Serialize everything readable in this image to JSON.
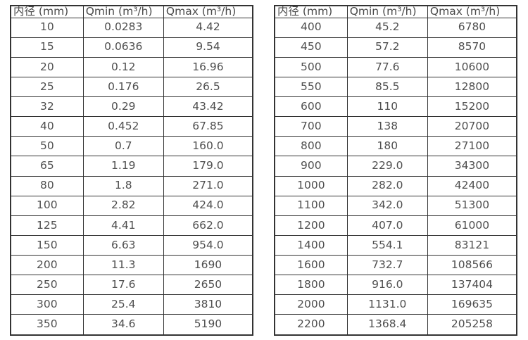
{
  "colors": {
    "background": "#ffffff",
    "border": "#333333",
    "text": "#4f4f4f"
  },
  "tables": [
    {
      "name": "flow-table-small-diameters",
      "headers": [
        "内径 (mm)",
        "Qmin (m³/h)",
        "Qmax (m³/h)"
      ],
      "rows": [
        [
          "10",
          "0.0283",
          "4.42"
        ],
        [
          "15",
          "0.0636",
          "9.54"
        ],
        [
          "20",
          "0.12",
          "16.96"
        ],
        [
          "25",
          "0.176",
          "26.5"
        ],
        [
          "32",
          "0.29",
          "43.42"
        ],
        [
          "40",
          "0.452",
          "67.85"
        ],
        [
          "50",
          "0.7",
          "160.0"
        ],
        [
          "65",
          "1.19",
          "179.0"
        ],
        [
          "80",
          "1.8",
          "271.0"
        ],
        [
          "100",
          "2.82",
          "424.0"
        ],
        [
          "125",
          "4.41",
          "662.0"
        ],
        [
          "150",
          "6.63",
          "954.0"
        ],
        [
          "200",
          "11.3",
          "1690"
        ],
        [
          "250",
          "17.6",
          "2650"
        ],
        [
          "300",
          "25.4",
          "3810"
        ],
        [
          "350",
          "34.6",
          "5190"
        ]
      ]
    },
    {
      "name": "flow-table-large-diameters",
      "headers": [
        "内径 (mm)",
        "Qmin (m³/h)",
        "Qmax (m³/h)"
      ],
      "rows": [
        [
          "400",
          "45.2",
          "6780"
        ],
        [
          "450",
          "57.2",
          "8570"
        ],
        [
          "500",
          "77.6",
          "10600"
        ],
        [
          "550",
          "85.5",
          "12800"
        ],
        [
          "600",
          "110",
          "15200"
        ],
        [
          "700",
          "138",
          "20700"
        ],
        [
          "800",
          "180",
          "27100"
        ],
        [
          "900",
          "229.0",
          "34300"
        ],
        [
          "1000",
          "282.0",
          "42400"
        ],
        [
          "1100",
          "342.0",
          "51300"
        ],
        [
          "1200",
          "407.0",
          "61000"
        ],
        [
          "1400",
          "554.1",
          "83121"
        ],
        [
          "1600",
          "732.7",
          "108566"
        ],
        [
          "1800",
          "916.0",
          "137404"
        ],
        [
          "2000",
          "1131.0",
          "169635"
        ],
        [
          "2200",
          "1368.4",
          "205258"
        ]
      ]
    }
  ]
}
